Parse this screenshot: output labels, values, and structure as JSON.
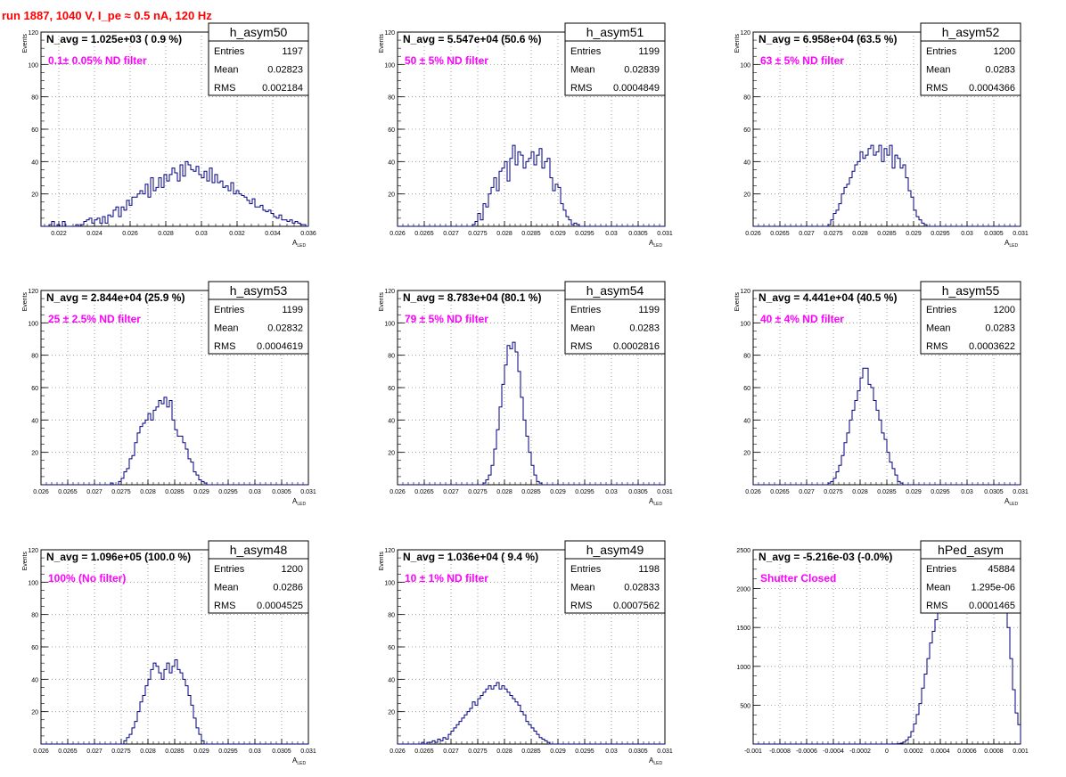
{
  "run_title": "run 1887,  1040 V, I_pe ≈ 0.5 nA, 120 Hz",
  "colors": {
    "histogram": "#000080",
    "annotation": "#ff00ff",
    "title_red": "#ff0000",
    "grid": "#888888"
  },
  "chart_data": [
    {
      "type": "histogram",
      "name": "h_asym50",
      "navg": "N_avg = 1.025e+03 ( 0.9 %)",
      "filter": "0.1± 0.05% ND filter",
      "stats": {
        "entries": "1197",
        "mean": "0.02823",
        "rms": "0.002184"
      },
      "stat_labels": [
        "Entries",
        "Mean",
        "RMS"
      ],
      "ylabel": "Events",
      "xlabel": "A_LED",
      "xlim": [
        0.021,
        0.036
      ],
      "ylim": [
        0,
        120
      ],
      "xticks": [
        "0.022",
        "0.024",
        "0.026",
        "0.028",
        "0.03",
        "0.032",
        "0.034",
        "0.036"
      ],
      "yticks": [
        "20",
        "40",
        "60",
        "80",
        "100",
        "120"
      ],
      "bin_start": 0.021,
      "bin_width": 0.00015,
      "values": [
        0,
        0,
        0,
        1,
        3,
        0,
        1,
        0,
        3,
        0,
        0,
        0,
        0,
        1,
        0,
        1,
        3,
        4,
        5,
        2,
        4,
        5,
        2,
        6,
        2,
        7,
        6,
        10,
        12,
        6,
        12,
        10,
        16,
        13,
        18,
        18,
        20,
        22,
        20,
        26,
        18,
        30,
        22,
        24,
        30,
        24,
        32,
        28,
        32,
        36,
        33,
        28,
        38,
        31,
        40,
        38,
        35,
        34,
        37,
        32,
        30,
        34,
        28,
        36,
        27,
        32,
        27,
        28,
        24,
        25,
        22,
        27,
        20,
        22,
        20,
        19,
        18,
        16,
        14,
        17,
        12,
        12,
        13,
        10,
        9,
        10,
        8,
        6,
        5,
        7,
        4,
        4,
        3,
        4,
        2,
        3,
        2,
        1,
        1,
        0
      ]
    },
    {
      "type": "histogram",
      "name": "h_asym51",
      "navg": "N_avg = 5.547e+04 (50.6 %)",
      "filter": "50 ± 5% ND filter",
      "stats": {
        "entries": "1199",
        "mean": "0.02839",
        "rms": "0.0004849"
      },
      "stat_labels": [
        "Entries",
        "Mean",
        "RMS"
      ],
      "ylabel": "Events",
      "xlabel": "A_LED",
      "xlim": [
        0.026,
        0.031
      ],
      "ylim": [
        0,
        120
      ],
      "xticks": [
        "0.026",
        "0.0265",
        "0.027",
        "0.0275",
        "0.028",
        "0.0285",
        "0.029",
        "0.0295",
        "0.03",
        "0.0305",
        "0.031"
      ],
      "yticks": [
        "20",
        "40",
        "60",
        "80",
        "100",
        "120"
      ],
      "bin_start": 0.026,
      "bin_width": 5e-05,
      "values": [
        0,
        0,
        0,
        0,
        0,
        0,
        0,
        0,
        0,
        0,
        0,
        0,
        0,
        0,
        0,
        0,
        0,
        0,
        0,
        0,
        0,
        0,
        0,
        0,
        0,
        0,
        0,
        0,
        1,
        3,
        8,
        4,
        14,
        12,
        20,
        24,
        30,
        22,
        34,
        36,
        40,
        28,
        42,
        50,
        38,
        46,
        44,
        36,
        40,
        42,
        46,
        38,
        44,
        48,
        36,
        40,
        42,
        30,
        22,
        26,
        24,
        14,
        10,
        6,
        4,
        1,
        2,
        1,
        0,
        0,
        0,
        0,
        0,
        0,
        0,
        0,
        0,
        0,
        0,
        0,
        0,
        0,
        0,
        0,
        0,
        0,
        0,
        0,
        0,
        0,
        0,
        0,
        0,
        0,
        0,
        0,
        0,
        0,
        0,
        0
      ]
    },
    {
      "type": "histogram",
      "name": "h_asym52",
      "navg": "N_avg = 6.958e+04 (63.5 %)",
      "filter": "63 ± 5% ND filter",
      "stats": {
        "entries": "1200",
        "mean": "0.0283",
        "rms": "0.0004366"
      },
      "stat_labels": [
        "Entries",
        "Mean",
        "RMS"
      ],
      "ylabel": "Events",
      "xlabel": "A_LED",
      "xlim": [
        0.026,
        0.031
      ],
      "ylim": [
        0,
        120
      ],
      "xticks": [
        "0.026",
        "0.0265",
        "0.027",
        "0.0275",
        "0.028",
        "0.0285",
        "0.029",
        "0.0295",
        "0.03",
        "0.0305",
        "0.031"
      ],
      "yticks": [
        "20",
        "40",
        "60",
        "80",
        "100",
        "120"
      ],
      "bin_start": 0.026,
      "bin_width": 5e-05,
      "values": [
        0,
        0,
        0,
        0,
        0,
        0,
        0,
        0,
        0,
        0,
        0,
        0,
        0,
        0,
        0,
        0,
        0,
        0,
        0,
        0,
        0,
        0,
        0,
        0,
        0,
        0,
        0,
        0,
        1,
        4,
        8,
        10,
        14,
        20,
        24,
        26,
        30,
        34,
        38,
        40,
        46,
        42,
        44,
        48,
        50,
        44,
        46,
        50,
        40,
        48,
        44,
        50,
        36,
        44,
        42,
        36,
        38,
        30,
        22,
        18,
        10,
        6,
        4,
        2,
        1,
        0,
        0,
        0,
        0,
        0,
        0,
        0,
        0,
        0,
        0,
        0,
        0,
        0,
        0,
        0,
        0,
        0,
        0,
        0,
        0,
        0,
        0,
        0,
        0,
        0,
        0,
        0,
        0,
        0,
        0,
        0,
        0,
        0,
        0,
        0
      ]
    },
    {
      "type": "histogram",
      "name": "h_asym53",
      "navg": "N_avg = 2.844e+04 (25.9 %)",
      "filter": "25 ± 2.5% ND filter",
      "stats": {
        "entries": "1199",
        "mean": "0.02832",
        "rms": "0.0004619"
      },
      "stat_labels": [
        "Entries",
        "Mean",
        "RMS"
      ],
      "ylabel": "Events",
      "xlabel": "A_LED",
      "xlim": [
        0.026,
        0.031
      ],
      "ylim": [
        0,
        120
      ],
      "xticks": [
        "0.026",
        "0.0265",
        "0.027",
        "0.0275",
        "0.028",
        "0.0285",
        "0.029",
        "0.0295",
        "0.03",
        "0.0305",
        "0.031"
      ],
      "yticks": [
        "20",
        "40",
        "60",
        "80",
        "100",
        "120"
      ],
      "bin_start": 0.026,
      "bin_width": 5e-05,
      "values": [
        0,
        0,
        0,
        0,
        0,
        0,
        0,
        0,
        0,
        0,
        0,
        0,
        0,
        0,
        0,
        0,
        0,
        0,
        0,
        0,
        0,
        0,
        0,
        0,
        0,
        0,
        1,
        0,
        0,
        2,
        4,
        8,
        10,
        16,
        18,
        26,
        32,
        36,
        38,
        40,
        44,
        40,
        46,
        48,
        52,
        50,
        54,
        48,
        52,
        40,
        34,
        30,
        30,
        26,
        22,
        16,
        14,
        8,
        6,
        3,
        2,
        1,
        0,
        0,
        0,
        0,
        0,
        0,
        0,
        0,
        0,
        0,
        0,
        0,
        0,
        0,
        0,
        0,
        0,
        0,
        0,
        0,
        0,
        0,
        0,
        0,
        0,
        0,
        0,
        0,
        0,
        0,
        0,
        0,
        0,
        0,
        0,
        0,
        0,
        0
      ]
    },
    {
      "type": "histogram",
      "name": "h_asym54",
      "navg": "N_avg = 8.783e+04 (80.1 %)",
      "filter": "79 ± 5% ND filter",
      "stats": {
        "entries": "1199",
        "mean": "0.0283",
        "rms": "0.0002816"
      },
      "stat_labels": [
        "Entries",
        "Mean",
        "RMS"
      ],
      "ylabel": "Events",
      "xlabel": "A_LED",
      "xlim": [
        0.026,
        0.031
      ],
      "ylim": [
        0,
        120
      ],
      "xticks": [
        "0.026",
        "0.0265",
        "0.027",
        "0.0275",
        "0.028",
        "0.0285",
        "0.029",
        "0.0295",
        "0.03",
        "0.0305",
        "0.031"
      ],
      "yticks": [
        "20",
        "40",
        "60",
        "80",
        "100",
        "120"
      ],
      "bin_start": 0.026,
      "bin_width": 5e-05,
      "values": [
        0,
        0,
        0,
        0,
        0,
        0,
        0,
        0,
        0,
        0,
        0,
        0,
        0,
        0,
        0,
        0,
        0,
        0,
        0,
        0,
        0,
        0,
        0,
        0,
        0,
        0,
        0,
        0,
        0,
        0,
        0,
        0,
        1,
        3,
        6,
        12,
        22,
        34,
        48,
        62,
        74,
        86,
        84,
        88,
        82,
        70,
        54,
        40,
        30,
        20,
        12,
        6,
        2,
        1,
        0,
        0,
        0,
        0,
        0,
        0,
        0,
        0,
        0,
        0,
        0,
        0,
        0,
        0,
        0,
        0,
        0,
        0,
        0,
        0,
        0,
        0,
        0,
        0,
        0,
        0,
        0,
        0,
        0,
        0,
        0,
        0,
        0,
        0,
        0,
        0,
        0,
        0,
        0,
        0,
        0,
        0,
        0,
        0,
        0,
        0
      ]
    },
    {
      "type": "histogram",
      "name": "h_asym55",
      "navg": "N_avg = 4.441e+04 (40.5 %)",
      "filter": "40 ± 4% ND filter",
      "stats": {
        "entries": "1200",
        "mean": "0.0283",
        "rms": "0.0003622"
      },
      "stat_labels": [
        "Entries",
        "Mean",
        "RMS"
      ],
      "ylabel": "Events",
      "xlabel": "A_LED",
      "xlim": [
        0.026,
        0.031
      ],
      "ylim": [
        0,
        120
      ],
      "xticks": [
        "0.026",
        "0.0265",
        "0.027",
        "0.0275",
        "0.028",
        "0.0285",
        "0.029",
        "0.0295",
        "0.03",
        "0.0305",
        "0.031"
      ],
      "yticks": [
        "20",
        "40",
        "60",
        "80",
        "100",
        "120"
      ],
      "bin_start": 0.026,
      "bin_width": 5e-05,
      "values": [
        0,
        0,
        0,
        0,
        0,
        0,
        0,
        0,
        0,
        0,
        0,
        0,
        0,
        0,
        0,
        0,
        0,
        0,
        0,
        0,
        0,
        0,
        0,
        0,
        0,
        0,
        0,
        0,
        1,
        2,
        4,
        8,
        12,
        18,
        26,
        32,
        40,
        46,
        52,
        58,
        66,
        72,
        72,
        62,
        60,
        52,
        46,
        40,
        32,
        28,
        20,
        14,
        10,
        6,
        2,
        1,
        0,
        0,
        0,
        0,
        0,
        0,
        0,
        0,
        0,
        0,
        0,
        0,
        0,
        0,
        0,
        0,
        0,
        0,
        0,
        0,
        0,
        0,
        0,
        0,
        0,
        0,
        0,
        0,
        0,
        0,
        0,
        0,
        0,
        0,
        0,
        0,
        0,
        0,
        0,
        0,
        0,
        0,
        0,
        0
      ]
    },
    {
      "type": "histogram",
      "name": "h_asym48",
      "navg": "N_avg = 1.096e+05 (100.0 %)",
      "filter": "100% (No filter)",
      "stats": {
        "entries": "1200",
        "mean": "0.0286",
        "rms": "0.0004525"
      },
      "stat_labels": [
        "Entries",
        "Mean",
        "RMS"
      ],
      "ylabel": "Events",
      "xlabel": "A_LED",
      "xlim": [
        0.026,
        0.031
      ],
      "ylim": [
        0,
        120
      ],
      "xticks": [
        "0.026",
        "0.0265",
        "0.027",
        "0.0275",
        "0.028",
        "0.0285",
        "0.029",
        "0.0295",
        "0.03",
        "0.0305",
        "0.031"
      ],
      "yticks": [
        "20",
        "40",
        "60",
        "80",
        "100",
        "120"
      ],
      "bin_start": 0.026,
      "bin_width": 5e-05,
      "values": [
        0,
        0,
        0,
        0,
        0,
        0,
        0,
        0,
        0,
        0,
        0,
        0,
        0,
        0,
        0,
        0,
        0,
        0,
        0,
        0,
        0,
        0,
        0,
        0,
        0,
        0,
        0,
        0,
        0,
        0,
        0,
        2,
        4,
        6,
        10,
        14,
        20,
        26,
        30,
        36,
        40,
        46,
        50,
        48,
        44,
        40,
        46,
        50,
        44,
        48,
        52,
        46,
        44,
        40,
        36,
        30,
        24,
        16,
        10,
        6,
        2,
        0,
        0,
        0,
        0,
        0,
        0,
        0,
        0,
        0,
        0,
        0,
        0,
        0,
        0,
        0,
        0,
        0,
        0,
        0,
        0,
        0,
        0,
        0,
        0,
        0,
        0,
        0,
        0,
        0,
        0,
        0,
        0,
        0,
        0,
        0,
        0,
        0,
        0,
        0
      ]
    },
    {
      "type": "histogram",
      "name": "h_asym49",
      "navg": "N_avg = 1.036e+04 ( 9.4 %)",
      "filter": "10 ± 1% ND filter",
      "stats": {
        "entries": "1198",
        "mean": "0.02833",
        "rms": "0.0007562"
      },
      "stat_labels": [
        "Entries",
        "Mean",
        "RMS"
      ],
      "ylabel": "Events",
      "xlabel": "A_LED",
      "xlim": [
        0.026,
        0.031
      ],
      "ylim": [
        0,
        120
      ],
      "xticks": [
        "0.026",
        "0.0265",
        "0.027",
        "0.0275",
        "0.028",
        "0.0285",
        "0.029",
        "0.0295",
        "0.03",
        "0.0305",
        "0.031"
      ],
      "yticks": [
        "20",
        "40",
        "60",
        "80",
        "100",
        "120"
      ],
      "bin_start": 0.026,
      "bin_width": 5e-05,
      "values": [
        0,
        0,
        0,
        0,
        0,
        0,
        0,
        0,
        0,
        1,
        0,
        1,
        1,
        2,
        1,
        3,
        2,
        4,
        3,
        6,
        8,
        10,
        12,
        14,
        16,
        18,
        20,
        22,
        26,
        24,
        28,
        30,
        32,
        34,
        36,
        34,
        36,
        38,
        34,
        36,
        34,
        32,
        30,
        28,
        26,
        24,
        20,
        18,
        14,
        12,
        10,
        8,
        6,
        4,
        3,
        2,
        1,
        0,
        0,
        0,
        0,
        0,
        0,
        0,
        0,
        0,
        0,
        0,
        0,
        0,
        0,
        0,
        0,
        0,
        0,
        0,
        0,
        0,
        0,
        0,
        0,
        0,
        0,
        0,
        0,
        0,
        0,
        0,
        0,
        0,
        0,
        0,
        0,
        0,
        0,
        0,
        0,
        0,
        0,
        0
      ]
    },
    {
      "type": "histogram",
      "name": "hPed_asym",
      "navg": "N_avg = -5.216e-03 (-0.0%)",
      "filter": "Shutter Closed",
      "stats": {
        "entries": "45884",
        "mean": "1.295e-06",
        "rms": "0.0001465"
      },
      "stat_labels": [
        "Entries",
        "Mean",
        "RMS"
      ],
      "ylabel": "",
      "xlabel": "",
      "xlim": [
        -0.001,
        0.001
      ],
      "ylim": [
        0,
        2500
      ],
      "xticks": [
        "-0.001",
        "-0.0008",
        "-0.0006",
        "-0.0004",
        "-0.0002",
        "0",
        "0.0002",
        "0.0004",
        "0.0006",
        "0.0008",
        "0.001"
      ],
      "yticks": [
        "500",
        "1000",
        "1500",
        "2000",
        "2500"
      ],
      "bin_start": -0.001,
      "bin_width": 2e-05,
      "values": [
        0,
        0,
        0,
        0,
        0,
        0,
        0,
        0,
        0,
        0,
        0,
        0,
        0,
        0,
        0,
        0,
        0,
        0,
        0,
        0,
        0,
        0,
        0,
        0,
        0,
        0,
        0,
        0,
        0,
        0,
        0,
        0,
        0,
        0,
        0,
        0,
        0,
        0,
        0,
        0,
        0,
        0,
        0,
        0,
        0,
        0,
        0,
        0,
        0,
        0,
        0,
        0,
        1,
        2,
        5,
        12,
        25,
        50,
        90,
        160,
        260,
        380,
        520,
        720,
        900,
        1100,
        1300,
        1450,
        1600,
        1700,
        1780,
        1850,
        1900,
        1950,
        2000,
        2050,
        2100,
        2150,
        2200,
        2250,
        2300,
        2350,
        2380,
        2400,
        2450,
        2500,
        2480,
        2450,
        2400,
        2380,
        2300,
        2200,
        2100,
        1950,
        1800,
        1500,
        1100,
        700,
        400,
        250
      ]
    }
  ]
}
